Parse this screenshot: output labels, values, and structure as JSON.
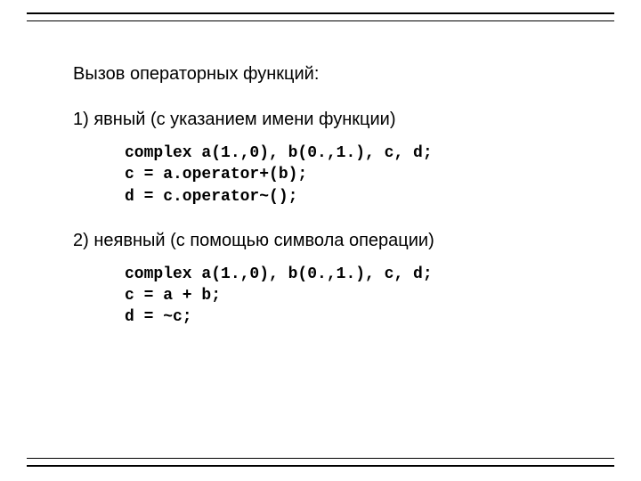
{
  "title": "Вызов операторных функций:",
  "sections": [
    {
      "label": "1) явный (с указанием имени функции)",
      "code": "complex a(1.,0), b(0.,1.), c, d;\nc = a.operator+(b);\nd = c.operator~();"
    },
    {
      "label": "2) неявный (с помощью символа операции)",
      "code": "complex a(1.,0), b(0.,1.), c, d;\nc = a + b;\nd = ~c;"
    }
  ],
  "style": {
    "background_color": "#ffffff",
    "text_color": "#000000",
    "heading_fontsize": 20,
    "section_fontsize": 20,
    "code_fontsize": 18,
    "code_font": "Courier New",
    "body_font": "Arial",
    "code_weight": "bold",
    "line_color": "#000000",
    "line_thickness_thick": 2,
    "line_thickness_thin": 1,
    "frame_gap": 8
  }
}
